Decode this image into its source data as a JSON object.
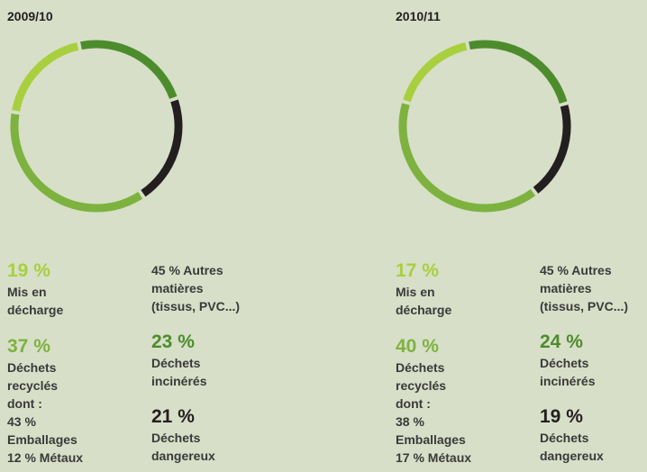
{
  "chart_data": [
    {
      "type": "donut",
      "title": "2009/10",
      "categories": [
        "Déchets incinérés",
        "Déchets dangereux",
        "Déchets recyclés",
        "Mis en décharge"
      ],
      "values": [
        23,
        21,
        37,
        19
      ],
      "value_labels": [
        "23 %",
        "21 %",
        "37 %",
        "19 %"
      ],
      "colors": [
        "#4d8c2c",
        "#231f20",
        "#7db23f",
        "#a9cf3e"
      ],
      "note": "45 % Autres matières (tissus, PVC...)",
      "recycled_details": [
        "dont :",
        "43 %",
        "Emballages",
        "12 % Métaux"
      ]
    },
    {
      "type": "donut",
      "title": "2010/11",
      "categories": [
        "Déchets incinérés",
        "Déchets dangereux",
        "Déchets recyclés",
        "Mis en décharge"
      ],
      "values": [
        24,
        19,
        40,
        17
      ],
      "value_labels": [
        "24 %",
        "19 %",
        "40 %",
        "17 %"
      ],
      "colors": [
        "#4d8c2c",
        "#231f20",
        "#7db23f",
        "#a9cf3e"
      ],
      "note": "45 % Autres matières (tissus, PVC...)",
      "recycled_details": [
        "dont :",
        "38 %",
        "Emballages",
        "17 % Métaux"
      ]
    }
  ]
}
